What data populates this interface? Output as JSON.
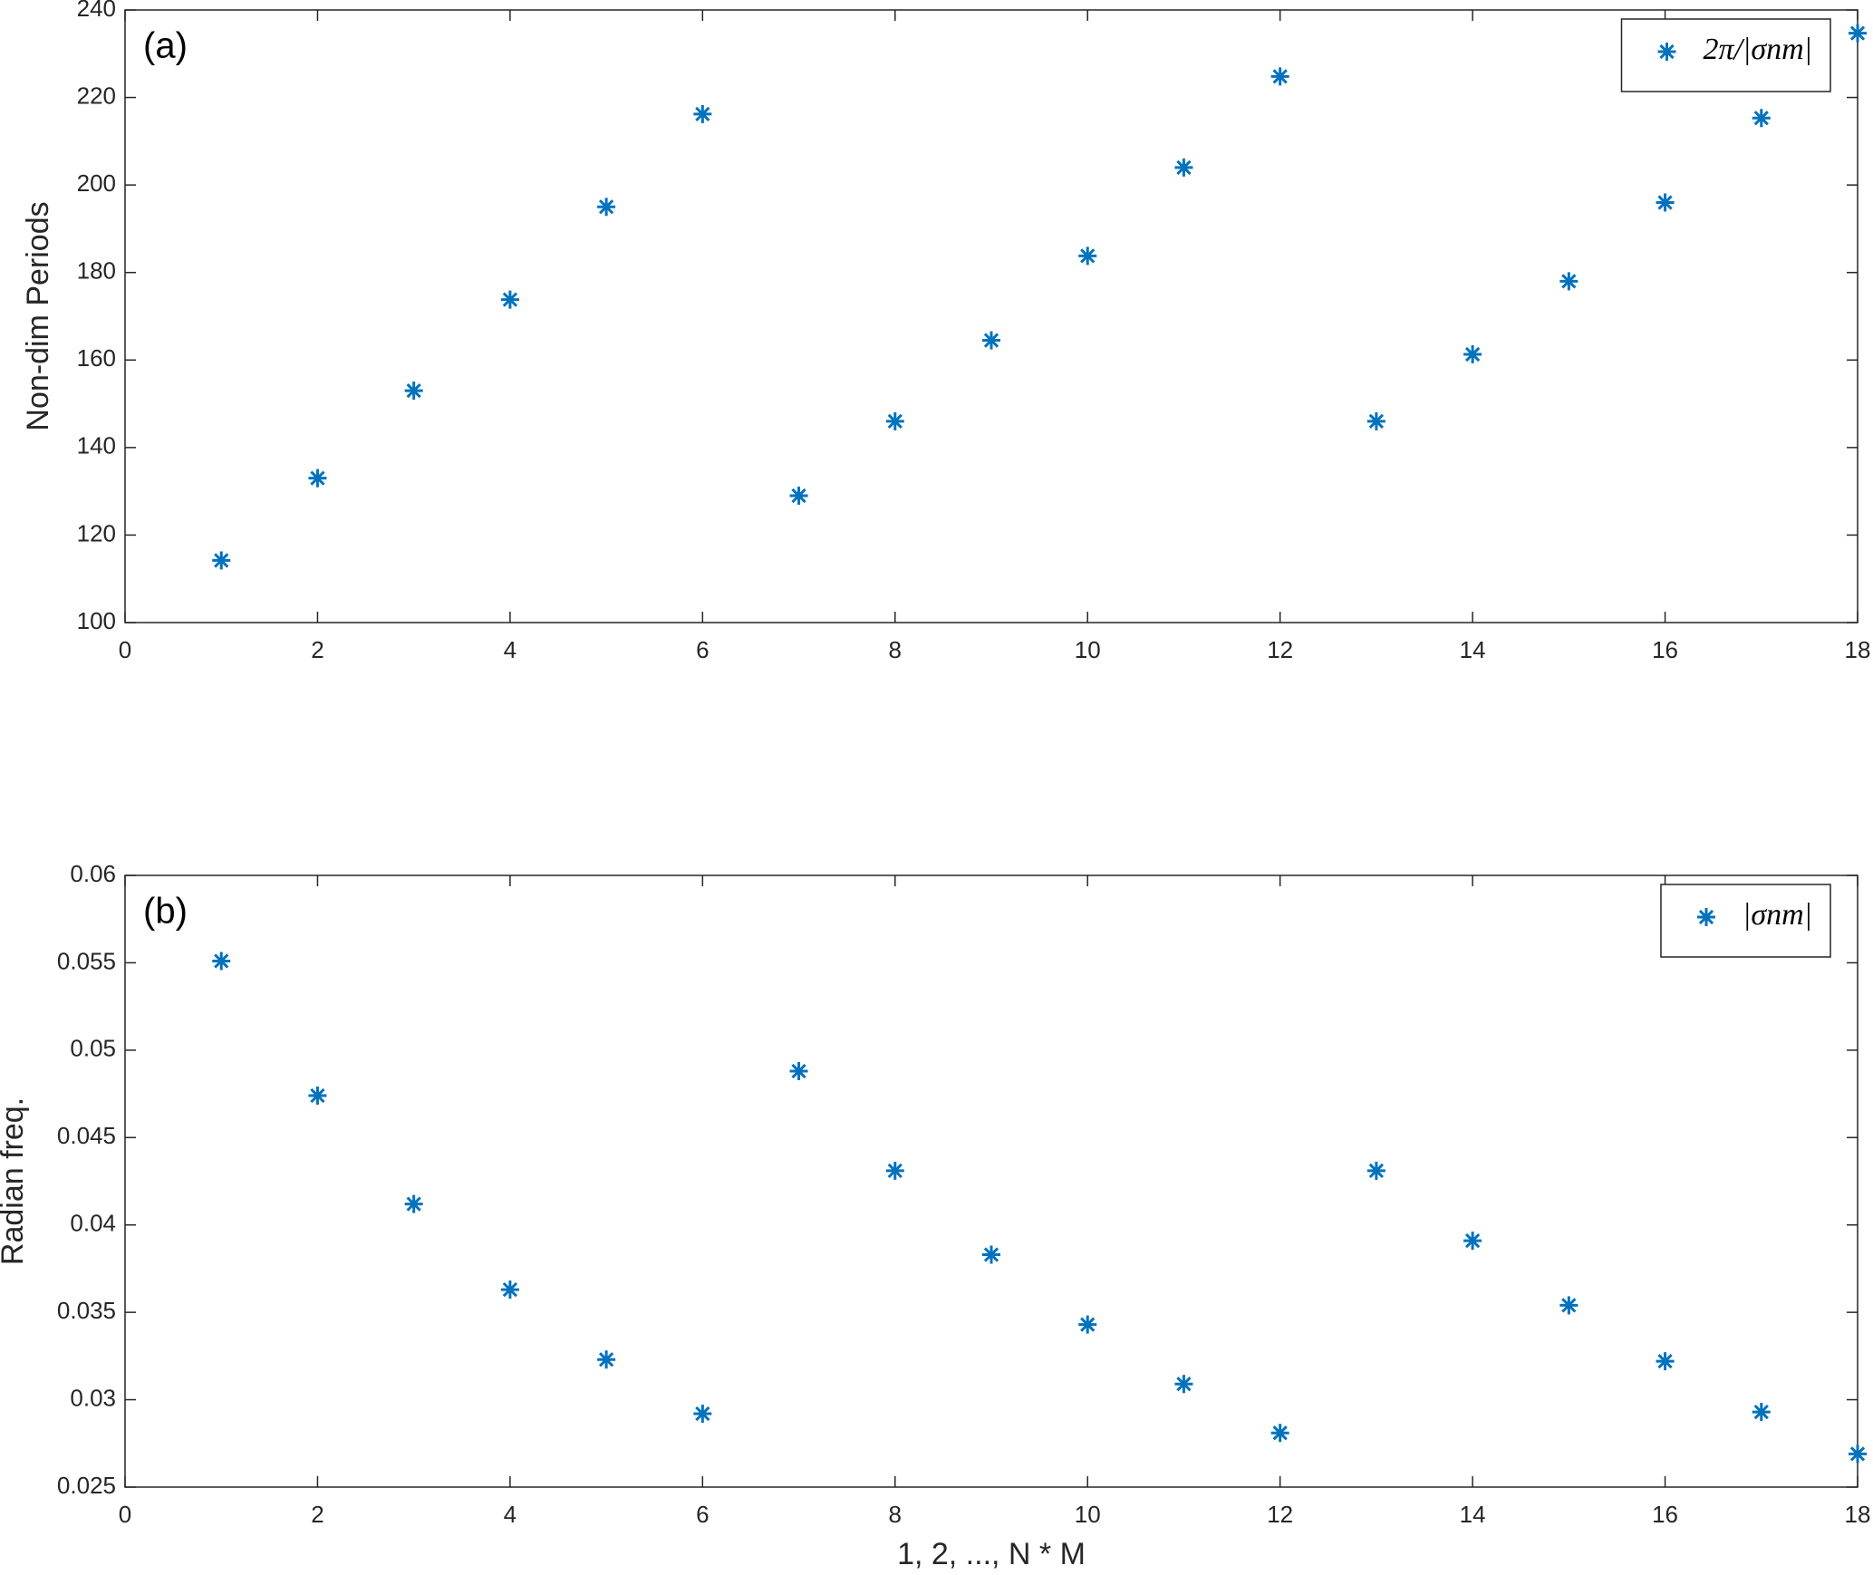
{
  "chart_data": [
    {
      "type": "scatter",
      "annotation": "(a)",
      "ylabel": "Non-dim Periods",
      "x": [
        1,
        2,
        3,
        4,
        5,
        6,
        7,
        8,
        9,
        10,
        11,
        12,
        13,
        14,
        15,
        16,
        17,
        18
      ],
      "series": [
        {
          "name": "2π/|σnm|",
          "color": "#0072bd",
          "values": [
            114.2,
            133,
            153,
            173.8,
            195,
            216.2,
            129,
            146,
            164.5,
            183.8,
            204,
            224.8,
            146,
            161.3,
            178,
            196,
            215.3,
            234.7
          ]
        }
      ],
      "xlim": [
        0,
        18
      ],
      "xticks": [
        0,
        2,
        4,
        6,
        8,
        10,
        12,
        14,
        16,
        18
      ],
      "ylim": [
        100,
        240
      ],
      "yticks": [
        100,
        120,
        140,
        160,
        180,
        200,
        220,
        240
      ],
      "legend": "upper right",
      "marker": "asterisk",
      "grid": false
    },
    {
      "type": "scatter",
      "annotation": "(b)",
      "ylabel": "Radian freq.",
      "xlabel": "1, 2, ..., N * M",
      "x": [
        1,
        2,
        3,
        4,
        5,
        6,
        7,
        8,
        9,
        10,
        11,
        12,
        13,
        14,
        15,
        16,
        17,
        18
      ],
      "series": [
        {
          "name": "|σnm|",
          "color": "#0072bd",
          "values": [
            0.0551,
            0.0474,
            0.0412,
            0.0363,
            0.0323,
            0.0292,
            0.0488,
            0.0431,
            0.0383,
            0.0343,
            0.0309,
            0.0281,
            0.0431,
            0.0391,
            0.0354,
            0.0322,
            0.0293,
            0.0269
          ]
        }
      ],
      "xlim": [
        0,
        18
      ],
      "xticks": [
        0,
        2,
        4,
        6,
        8,
        10,
        12,
        14,
        16,
        18
      ],
      "ylim": [
        0.025,
        0.06
      ],
      "yticks": [
        0.025,
        0.03,
        0.035,
        0.04,
        0.045,
        0.05,
        0.055,
        0.06
      ],
      "legend": "upper right",
      "marker": "asterisk",
      "grid": false
    }
  ]
}
